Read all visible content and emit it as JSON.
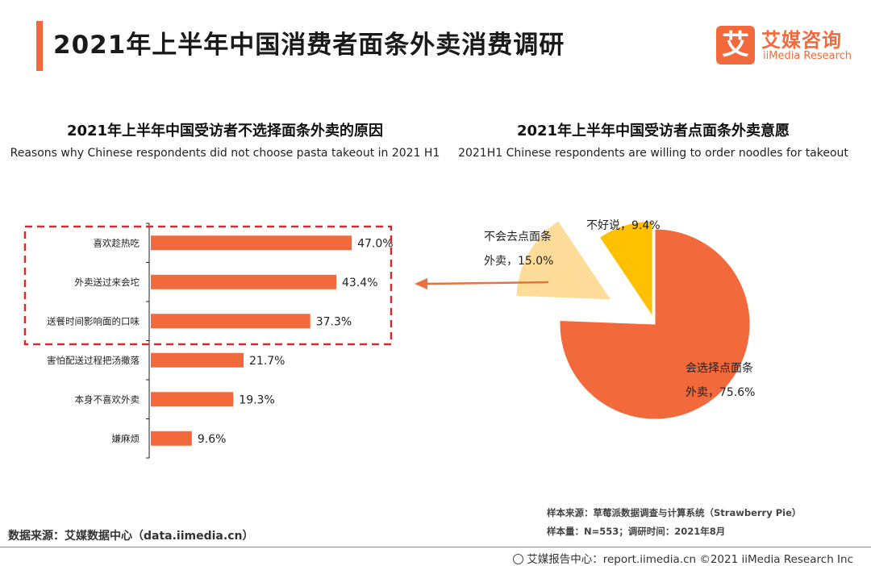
{
  "header": {
    "title": "2021年上半年中国消费者面条外卖消费调研",
    "logo_mark": "艾",
    "logo_cn": "艾媒咨询",
    "logo_en": "iiMedia Research"
  },
  "chart_data": [
    {
      "type": "bar",
      "orientation": "horizontal",
      "title": "2021年上半年中国受访者不选择面条外卖的原因",
      "subtitle": "Reasons why Chinese respondents did not choose pasta takeout in 2021 H1",
      "categories": [
        "喜欢趁热吃",
        "外卖送过来会坨",
        "送餐时间影响面的口味",
        "害怕配送过程把汤撒落",
        "本身不喜欢外卖",
        "嫌麻烦"
      ],
      "values": [
        47.0,
        43.4,
        37.3,
        21.7,
        19.3,
        9.6
      ],
      "value_labels": [
        "47.0%",
        "43.4%",
        "37.3%",
        "21.7%",
        "19.3%",
        "9.6%"
      ],
      "highlighted_categories": [
        "喜欢趁热吃",
        "外卖送过来会坨",
        "送餐时间影响面的口味"
      ],
      "xlim": [
        0,
        50
      ],
      "bar_color": "#f26a3b",
      "highlight_color": "#d42a2a"
    },
    {
      "type": "pie",
      "title": "2021年上半年中国受访者点面条外卖意愿",
      "subtitle": "2021H1 Chinese respondents are willing to order noodles for takeout",
      "slices": [
        {
          "name": "会选择点面条外卖",
          "label_line1": "会选择点面条",
          "label_line2": "外卖，75.6%",
          "value": 75.6,
          "color": "#f26a3b",
          "exploded": false
        },
        {
          "name": "不会去点面条外卖",
          "label_line1": "不会去点面条",
          "label_line2": "外卖，15.0%",
          "value": 15.0,
          "color": "#fddb98",
          "exploded": true
        },
        {
          "name": "不好说",
          "label_line1": "不好说，9.4%",
          "label_line2": "",
          "value": 9.4,
          "color": "#ffc000",
          "exploded": true
        }
      ],
      "arrow_color": "#e8713d"
    }
  ],
  "footer": {
    "data_source": "数据来源：艾媒数据中心（data.iimedia.cn）",
    "sample_source": "样本来源：草莓派数据调查与计算系统（Strawberry Pie）",
    "sample_info": "样本量：N=553；调研时间：2021年8月",
    "copyright": "艾媒报告中心：report.iimedia.cn ©2021  iiMedia Research  Inc"
  }
}
